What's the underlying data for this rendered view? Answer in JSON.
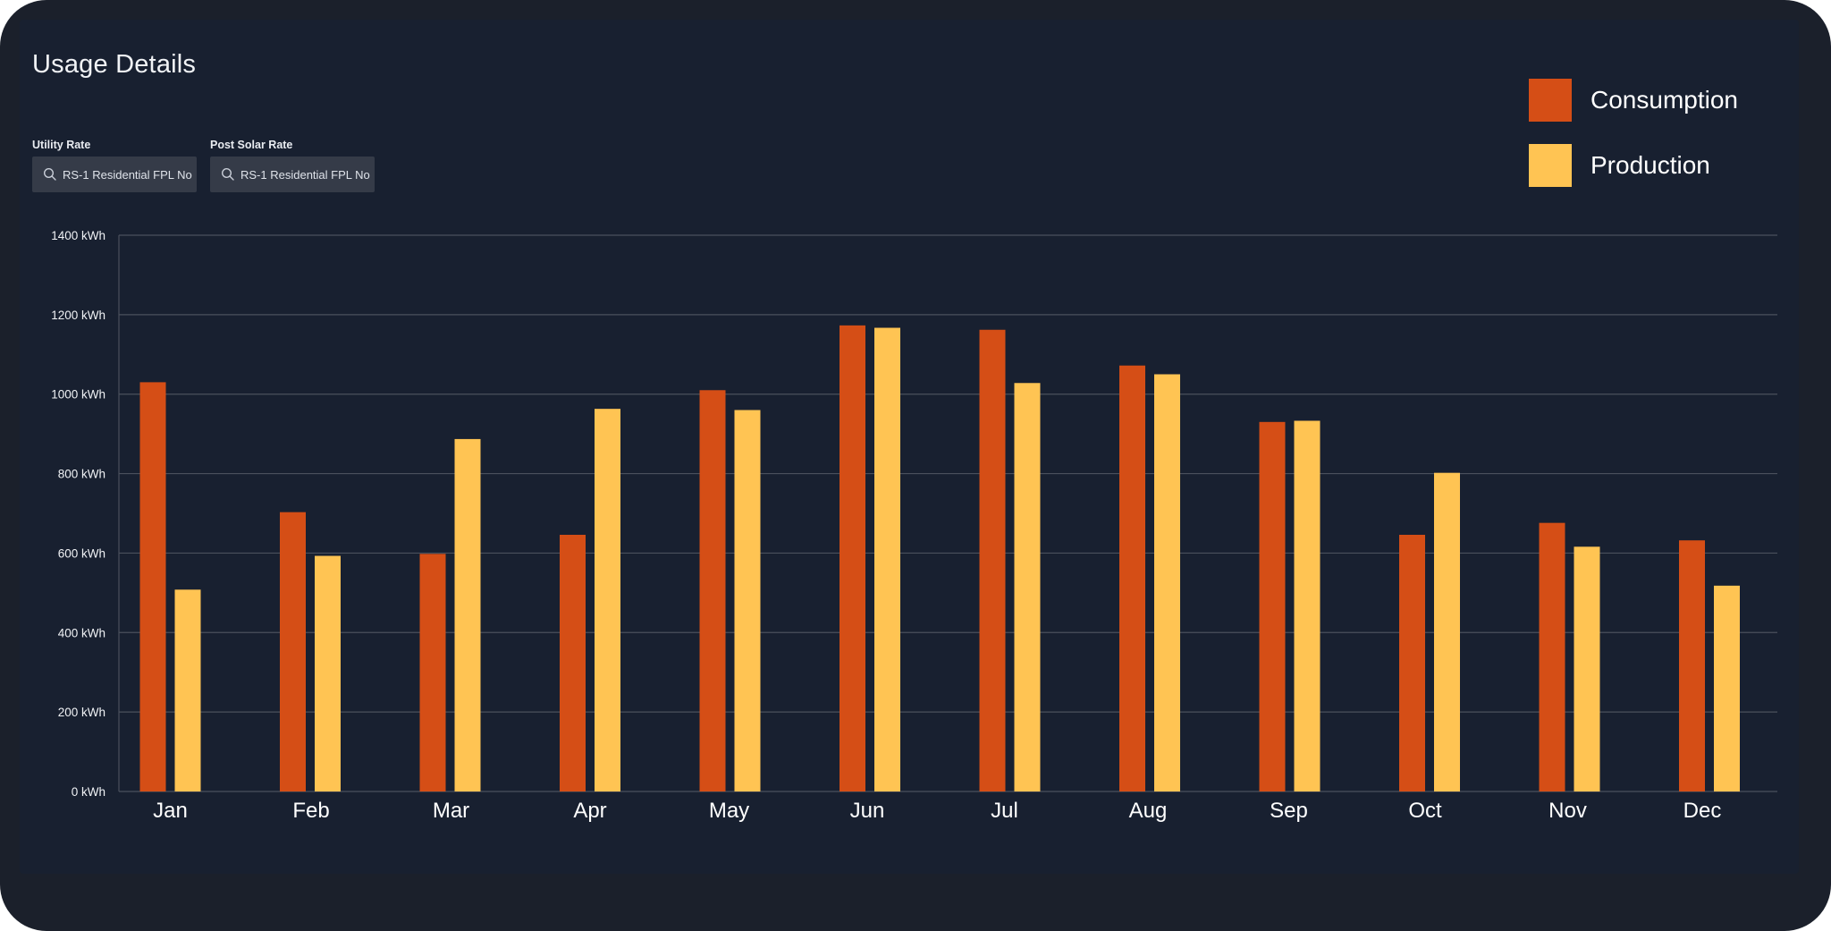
{
  "title": "Usage Details",
  "filters": [
    {
      "label": "Utility Rate",
      "value": "RS-1 Residential FPL No"
    },
    {
      "label": "Post Solar Rate",
      "value": "RS-1 Residential FPL No"
    }
  ],
  "colors": {
    "consumption": "#d54e16",
    "production": "#ffc453",
    "gridline": "#4a505c",
    "background": "#1b202b"
  },
  "chart_data": {
    "type": "bar",
    "categories": [
      "Jan",
      "Feb",
      "Mar",
      "Apr",
      "May",
      "Jun",
      "Jul",
      "Aug",
      "Sep",
      "Oct",
      "Nov",
      "Dec"
    ],
    "series": [
      {
        "name": "Consumption",
        "values": [
          1030,
          703,
          598,
          646,
          1010,
          1173,
          1162,
          1072,
          930,
          646,
          676,
          632
        ]
      },
      {
        "name": "Production",
        "values": [
          508,
          593,
          887,
          963,
          960,
          1167,
          1028,
          1050,
          933,
          802,
          616,
          518
        ]
      }
    ],
    "ylim": [
      0,
      1400
    ],
    "yticks": [
      "0 kWh",
      "200 kWh",
      "400 kWh",
      "600 kWh",
      "800 kWh",
      "1000 kWh",
      "1200 kWh",
      "1400 kWh"
    ],
    "ytick_values": [
      0,
      200,
      400,
      600,
      800,
      1000,
      1200,
      1400
    ],
    "grid": true,
    "legend_position": "top-right"
  }
}
